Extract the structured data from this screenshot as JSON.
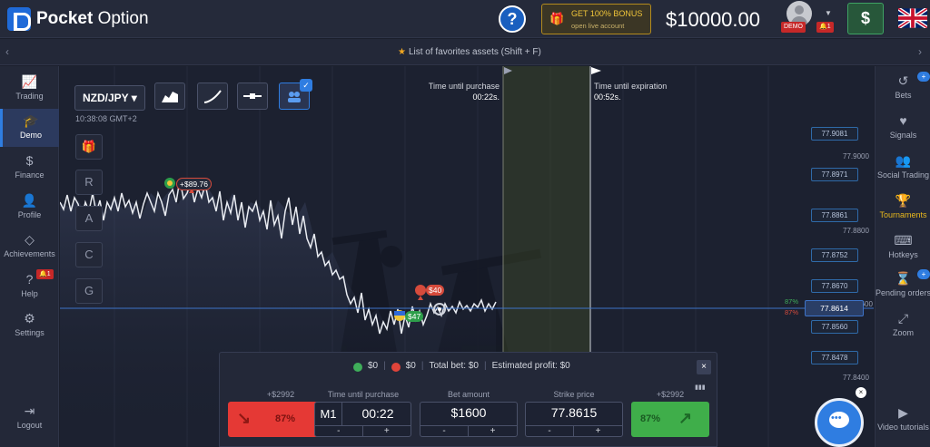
{
  "brand": {
    "name_bold": "Pocket",
    "name_light": " Option"
  },
  "header": {
    "help_label": "?",
    "bonus_title": "GET 100% BONUS",
    "bonus_sub": "open live account",
    "balance": "$10000.00",
    "account_badge": "DEMO",
    "notifications": "1",
    "deposit_label": "$"
  },
  "favorites": {
    "label": "List of favorites assets (Shift + F)"
  },
  "left_sidebar": {
    "items": [
      {
        "label": "Trading",
        "icon": "chart-line-icon"
      },
      {
        "label": "Demo",
        "icon": "graduation-cap-icon"
      },
      {
        "label": "Finance",
        "icon": "dollar-icon"
      },
      {
        "label": "Profile",
        "icon": "user-icon"
      },
      {
        "label": "Achievements",
        "icon": "diamond-icon"
      },
      {
        "label": "Help",
        "icon": "question-icon"
      },
      {
        "label": "Settings",
        "icon": "gear-icon"
      },
      {
        "label": "Logout",
        "icon": "logout-icon"
      }
    ],
    "help_badge": "1"
  },
  "right_sidebar": {
    "items": [
      {
        "label": "Bets",
        "icon": "history-icon"
      },
      {
        "label": "Signals",
        "icon": "pulse-heart-icon"
      },
      {
        "label": "Social Trading",
        "icon": "users-icon"
      },
      {
        "label": "Tournaments",
        "icon": "trophy-icon"
      },
      {
        "label": "Hotkeys",
        "icon": "keyboard-icon"
      },
      {
        "label": "Pending orders",
        "icon": "hourglass-icon"
      },
      {
        "label": "Zoom",
        "icon": "zoom-icon"
      },
      {
        "label": "Video tutorials",
        "icon": "video-icon"
      }
    ],
    "bets_badge": "+",
    "pending_badge": "+"
  },
  "chart": {
    "asset": "NZD/JPY",
    "time": "10:38:08 GMT+2",
    "side_tools": [
      "R",
      "A",
      "C",
      "G"
    ],
    "purchase_label": "Time until purchase",
    "purchase_value": "00:22s.",
    "expiry_label": "Time until expiration",
    "expiry_value": "00:52s.",
    "price_boxes": [
      "77.9081",
      "77.8971",
      "77.8861",
      "77.8752",
      "77.8670",
      "77.8560",
      "77.8478"
    ],
    "price_plain": [
      "77.9000",
      "77.8800",
      "77.8600",
      "77.8400"
    ],
    "current_price": "77.8614",
    "pct_up": "87%",
    "pct_down": "87%",
    "trade_labels": [
      "+$89.76",
      "$40",
      "$47"
    ]
  },
  "panel": {
    "up_amount": "$0",
    "down_amount": "$0",
    "total_bet": "Total bet: $0",
    "estimated_profit": "Estimated profit: $0",
    "payout_down": "+$2992",
    "payout_up": "+$2992",
    "time_label": "Time until purchase",
    "time_mode": "M1",
    "time_value": "00:22",
    "bet_label": "Bet amount",
    "bet_value": "$1600",
    "strike_label": "Strike price",
    "strike_value": "77.8615",
    "down_pct": "87%",
    "up_pct": "87%",
    "minus": "-",
    "plus": "+",
    "close": "×"
  }
}
